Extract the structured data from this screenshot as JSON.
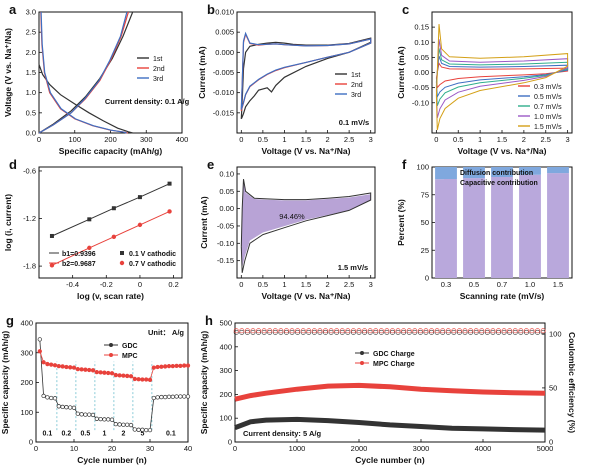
{
  "figure": {
    "background": "#ffffff"
  },
  "chart_data": [
    {
      "id": "a",
      "panel_label": "a",
      "type": "line",
      "xlabel": "Specific capacity (mAh/g)",
      "ylabel": "Voltage (V vs. Na⁺/Na)",
      "xlim": [
        0,
        400
      ],
      "ylim": [
        0,
        3.0
      ],
      "xticks": [
        0,
        100,
        200,
        300,
        400
      ],
      "yticks": [
        0,
        0.5,
        1.0,
        1.5,
        2.0,
        2.5,
        3.0
      ],
      "annotation": "Current density: 0.1 A/g",
      "legend": [
        "1st",
        "2nd",
        "3rd"
      ],
      "series": [
        {
          "name": "1st",
          "color": "#333333",
          "kind": "discharge",
          "x": [
            0,
            10,
            30,
            60,
            100,
            140,
            180,
            220,
            250,
            262
          ],
          "y": [
            1.7,
            1.45,
            1.2,
            0.95,
            0.72,
            0.5,
            0.3,
            0.12,
            0.03,
            0.0
          ]
        },
        {
          "name": "1st",
          "color": "#333333",
          "kind": "charge",
          "x": [
            0,
            40,
            90,
            130,
            170,
            205,
            235,
            262
          ],
          "y": [
            0.0,
            0.22,
            0.55,
            0.9,
            1.35,
            1.85,
            2.4,
            3.0
          ]
        },
        {
          "name": "2nd",
          "color": "#e8423c",
          "kind": "discharge",
          "x": [
            5,
            8,
            15,
            30,
            60,
            100,
            150,
            200,
            240,
            248
          ],
          "y": [
            3.0,
            2.2,
            1.5,
            1.0,
            0.6,
            0.35,
            0.18,
            0.07,
            0.02,
            0.0
          ]
        },
        {
          "name": "2nd",
          "color": "#e8423c",
          "kind": "charge",
          "x": [
            0,
            40,
            90,
            130,
            170,
            200,
            230,
            250
          ],
          "y": [
            0.0,
            0.2,
            0.5,
            0.85,
            1.3,
            1.8,
            2.4,
            3.0
          ]
        },
        {
          "name": "3rd",
          "color": "#3e6fc2",
          "kind": "discharge",
          "x": [
            6,
            9,
            16,
            32,
            62,
            102,
            152,
            202,
            238,
            245
          ],
          "y": [
            3.0,
            2.2,
            1.5,
            1.0,
            0.6,
            0.35,
            0.18,
            0.07,
            0.02,
            0.0
          ]
        },
        {
          "name": "3rd",
          "color": "#3e6fc2",
          "kind": "charge",
          "x": [
            0,
            40,
            90,
            128,
            168,
            198,
            228,
            246
          ],
          "y": [
            0.0,
            0.2,
            0.5,
            0.85,
            1.3,
            1.8,
            2.4,
            3.0
          ]
        }
      ]
    },
    {
      "id": "b",
      "panel_label": "b",
      "type": "line",
      "xlabel": "Voltage (V vs. Na⁺/Na)",
      "ylabel": "Current (mA)",
      "xlim": [
        -0.1,
        3.1
      ],
      "ylim": [
        -0.02,
        0.01
      ],
      "xticks": [
        0.0,
        0.5,
        1.0,
        1.5,
        2.0,
        2.5,
        3.0
      ],
      "yticks": [
        -0.015,
        -0.01,
        -0.005,
        0.0,
        0.005,
        0.01
      ],
      "annotation": "0.1 mV/s",
      "legend": [
        "1st",
        "2nd",
        "3rd"
      ],
      "series": [
        {
          "name": "1st",
          "color": "#333333",
          "x": [
            0.0,
            0.02,
            0.05,
            0.1,
            0.2,
            0.4,
            0.6,
            0.8,
            1.0,
            1.2,
            1.5,
            2.0,
            2.5,
            3.0,
            3.0,
            2.5,
            2.0,
            1.5,
            1.0,
            0.8,
            0.7,
            0.6,
            0.4,
            0.3,
            0.2,
            0.1,
            0.05,
            0.02,
            0.0
          ],
          "y": [
            -0.0165,
            -0.012,
            -0.004,
            0.0,
            0.0015,
            0.002,
            0.0023,
            0.0025,
            0.0023,
            0.002,
            0.0018,
            0.0018,
            0.0022,
            0.0035,
            0.0025,
            0.0,
            -0.0015,
            -0.0035,
            -0.0062,
            -0.0082,
            -0.0098,
            -0.0088,
            -0.0094,
            -0.0108,
            -0.012,
            -0.0135,
            -0.0152,
            -0.016,
            -0.0165
          ]
        },
        {
          "name": "2nd",
          "color": "#e8423c",
          "x": [
            0.0,
            0.02,
            0.05,
            0.1,
            0.2,
            0.4,
            0.6,
            0.8,
            1.0,
            1.5,
            2.0,
            2.5,
            3.0,
            3.0,
            2.5,
            2.0,
            1.5,
            1.0,
            0.8,
            0.6,
            0.4,
            0.2,
            0.1,
            0.05,
            0.0
          ],
          "y": [
            -0.0145,
            -0.008,
            0.0025,
            0.0045,
            0.0022,
            0.0018,
            0.002,
            0.0021,
            0.0019,
            0.0016,
            0.0017,
            0.0021,
            0.0033,
            0.0023,
            0.0,
            -0.0012,
            -0.0025,
            -0.0038,
            -0.0045,
            -0.0055,
            -0.0068,
            -0.0085,
            -0.0105,
            -0.0125,
            -0.0145
          ]
        },
        {
          "name": "3rd",
          "color": "#3e6fc2",
          "x": [
            0.0,
            0.02,
            0.05,
            0.1,
            0.2,
            0.4,
            0.6,
            0.8,
            1.0,
            1.5,
            2.0,
            2.5,
            3.0,
            3.0,
            2.5,
            2.0,
            1.5,
            1.0,
            0.8,
            0.6,
            0.4,
            0.2,
            0.1,
            0.05,
            0.0
          ],
          "y": [
            -0.0142,
            -0.0078,
            0.0028,
            0.0047,
            0.0023,
            0.0019,
            0.002,
            0.0021,
            0.0019,
            0.0016,
            0.0017,
            0.0021,
            0.0033,
            0.0023,
            0.0,
            -0.0012,
            -0.0025,
            -0.0037,
            -0.0044,
            -0.0054,
            -0.0067,
            -0.0084,
            -0.0104,
            -0.0124,
            -0.0142
          ]
        }
      ]
    },
    {
      "id": "c",
      "panel_label": "c",
      "type": "line",
      "xlabel": "Voltage (V vs. Na⁺/Na)",
      "ylabel": "Current (mA)",
      "xlim": [
        -0.1,
        3.1
      ],
      "ylim": [
        -0.2,
        0.2
      ],
      "xticks": [
        0.0,
        0.5,
        1.0,
        1.5,
        2.0,
        2.5,
        3.0
      ],
      "yticks": [
        -0.1,
        -0.05,
        0.0,
        0.05,
        0.1,
        0.15
      ],
      "legend": [
        "0.3 mV/s",
        "0.5 mV/s",
        "0.7 mV/s",
        "1.0 mV/s",
        "1.5 mV/s"
      ],
      "series": [
        {
          "name": "0.3 mV/s",
          "color": "#e8423c",
          "top": 0.012,
          "bottom": -0.02,
          "peak": 0.03,
          "trough": -0.05
        },
        {
          "name": "0.5 mV/s",
          "color": "#3e6fc2",
          "top": 0.02,
          "bottom": -0.035,
          "peak": 0.055,
          "trough": -0.08
        },
        {
          "name": "0.7 mV/s",
          "color": "#2fae8c",
          "top": 0.028,
          "bottom": -0.048,
          "peak": 0.08,
          "trough": -0.11
        },
        {
          "name": "1.0 mV/s",
          "color": "#9b59c6",
          "top": 0.038,
          "bottom": -0.065,
          "peak": 0.11,
          "trough": -0.15
        },
        {
          "name": "1.5 mV/s",
          "color": "#d4a017",
          "top": 0.052,
          "bottom": -0.085,
          "peak": 0.16,
          "trough": -0.19
        }
      ]
    },
    {
      "id": "d",
      "panel_label": "d",
      "type": "scatter",
      "xlabel": "log (v, scan rate)",
      "ylabel": "log (i, current)",
      "xlim": [
        -0.6,
        0.25
      ],
      "ylim": [
        -1.95,
        -0.55
      ],
      "xticks": [
        -0.4,
        -0.2,
        0.0,
        0.2
      ],
      "yticks": [
        -1.8,
        -1.2,
        -0.6
      ],
      "legend_labels": [
        "b1=0.9396",
        "b2=0.9687"
      ],
      "series": [
        {
          "name": "0.1 V cathodic",
          "color": "#333333",
          "x": [
            -0.523,
            -0.301,
            -0.155,
            0.0,
            0.176
          ],
          "y": [
            -1.42,
            -1.21,
            -1.07,
            -0.93,
            -0.76
          ]
        },
        {
          "name": "0.7 V cathodic",
          "color": "#e8423c",
          "x": [
            -0.523,
            -0.301,
            -0.155,
            0.0,
            0.176
          ],
          "y": [
            -1.79,
            -1.57,
            -1.43,
            -1.28,
            -1.11
          ]
        }
      ]
    },
    {
      "id": "e",
      "panel_label": "e",
      "type": "area",
      "xlabel": "Voltage (V vs. Na⁺/Na)",
      "ylabel": "Current (mA)",
      "xlim": [
        -0.1,
        3.1
      ],
      "ylim": [
        -0.2,
        0.12
      ],
      "xticks": [
        0.0,
        0.5,
        1.0,
        1.5,
        2.0,
        2.5,
        3.0
      ],
      "yticks": [
        -0.15,
        -0.1,
        -0.05,
        0.0,
        0.05,
        0.1
      ],
      "annotation": "1.5 mV/s",
      "fill_label": "94.46%",
      "fill_color": "#b8a3d6"
    },
    {
      "id": "f",
      "panel_label": "f",
      "type": "bar",
      "xlabel": "Scanning rate (mV/s)",
      "ylabel": "Percent (%)",
      "ylim": [
        0,
        100
      ],
      "yticks": [
        0,
        25,
        50,
        75,
        100
      ],
      "categories": [
        "0.3",
        "0.5",
        "0.7",
        "1.0",
        "1.5"
      ],
      "series": [
        {
          "name": "Capacitive contribution",
          "color": "#b9a8dc",
          "values": [
            89,
            90,
            91,
            93,
            94.5
          ]
        },
        {
          "name": "Diffusion contribution",
          "color": "#7fa8de",
          "values": [
            11,
            10,
            9,
            7,
            5.5
          ]
        }
      ]
    },
    {
      "id": "g",
      "panel_label": "g",
      "type": "scatter",
      "xlabel": "Cycle number (n)",
      "ylabel": "Specific capacity (mAh/g)",
      "xlim": [
        0,
        40
      ],
      "ylim": [
        0,
        400
      ],
      "xticks": [
        0,
        10,
        20,
        30,
        40
      ],
      "yticks": [
        0,
        100,
        200,
        300,
        400
      ],
      "unit_label": "Unit： A/g",
      "rate_labels": [
        "0.1",
        "0.2",
        "0.5",
        "1",
        "2",
        "5",
        "0.1"
      ],
      "rate_segment_cycles": [
        [
          1,
          5
        ],
        [
          6,
          10
        ],
        [
          11,
          15
        ],
        [
          16,
          20
        ],
        [
          21,
          25
        ],
        [
          26,
          30
        ],
        [
          31,
          40
        ]
      ],
      "series": [
        {
          "name": "GDC",
          "color": "#333333",
          "x": [
            1,
            2,
            3,
            4,
            5,
            6,
            7,
            8,
            9,
            10,
            11,
            12,
            13,
            14,
            15,
            16,
            17,
            18,
            19,
            20,
            21,
            22,
            23,
            24,
            25,
            26,
            27,
            28,
            29,
            30,
            31,
            32,
            33,
            34,
            35,
            36,
            37,
            38,
            39,
            40
          ],
          "y": [
            345,
            155,
            150,
            148,
            147,
            120,
            118,
            117,
            116,
            115,
            95,
            93,
            92,
            92,
            91,
            78,
            77,
            76,
            76,
            75,
            60,
            59,
            58,
            58,
            57,
            42,
            41,
            41,
            40,
            40,
            148,
            150,
            151,
            151,
            152,
            152,
            153,
            153,
            153,
            153
          ]
        },
        {
          "name": "MPC",
          "color": "#e8423c",
          "x": [
            1,
            2,
            3,
            4,
            5,
            6,
            7,
            8,
            9,
            10,
            11,
            12,
            13,
            14,
            15,
            16,
            17,
            18,
            19,
            20,
            21,
            22,
            23,
            24,
            25,
            26,
            27,
            28,
            29,
            30,
            31,
            32,
            33,
            34,
            35,
            36,
            37,
            38,
            39,
            40
          ],
          "y": [
            305,
            268,
            262,
            260,
            258,
            255,
            254,
            252,
            251,
            250,
            245,
            244,
            243,
            242,
            241,
            235,
            234,
            233,
            232,
            231,
            225,
            224,
            223,
            222,
            221,
            212,
            211,
            210,
            210,
            209,
            250,
            252,
            253,
            254,
            255,
            255,
            256,
            256,
            257,
            257
          ]
        }
      ]
    },
    {
      "id": "h",
      "panel_label": "h",
      "type": "scatter",
      "xlabel": "Cycle number (n)",
      "ylabel": "Specific capacity (mAh/g)",
      "y2label": "Coulombic efficiency (%)",
      "xlim": [
        0,
        5000
      ],
      "ylim": [
        0,
        500
      ],
      "y2lim": [
        0,
        110
      ],
      "xticks": [
        0,
        1000,
        2000,
        3000,
        4000,
        5000
      ],
      "yticks": [
        0,
        100,
        200,
        300,
        400,
        500
      ],
      "y2ticks": [
        0,
        50,
        100
      ],
      "annotation": "Current density: 5 A/g",
      "series": [
        {
          "name": "GDC Charge",
          "color": "#333333",
          "x": [
            0,
            250,
            500,
            1000,
            1500,
            2000,
            2500,
            3000,
            3500,
            4000,
            4500,
            5000
          ],
          "y": [
            60,
            85,
            92,
            95,
            90,
            82,
            72,
            65,
            58,
            55,
            52,
            50
          ]
        },
        {
          "name": "MPC Charge",
          "color": "#e8423c",
          "x": [
            0,
            250,
            500,
            1000,
            1500,
            2000,
            2500,
            3000,
            3500,
            4000,
            4500,
            5000
          ],
          "y": [
            180,
            195,
            205,
            222,
            235,
            238,
            232,
            222,
            215,
            210,
            207,
            205
          ]
        },
        {
          "name": "GDC CE",
          "color": "#333333",
          "hollow": true,
          "x": [
            0,
            5000
          ],
          "y": [
            99.5,
            99.5
          ]
        },
        {
          "name": "MPC CE",
          "color": "#e8423c",
          "hollow": true,
          "x": [
            0,
            5000
          ],
          "y": [
            101,
            101
          ]
        }
      ]
    }
  ]
}
